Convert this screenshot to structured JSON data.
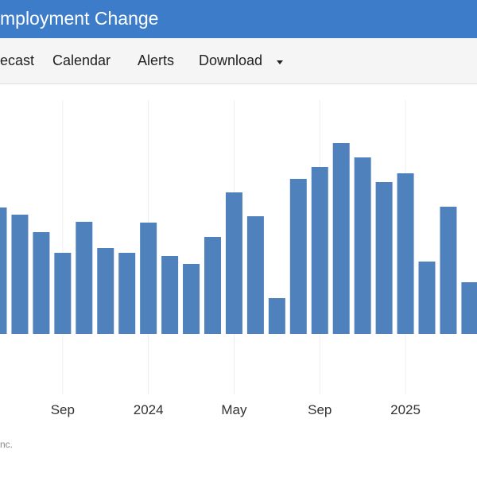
{
  "header": {
    "title": "mployment Change"
  },
  "nav": [
    "ecast",
    "Calendar",
    "Alerts",
    "Download"
  ],
  "footer": {
    "source": "nc."
  },
  "chart_data": {
    "type": "bar",
    "color": "#4f81bd",
    "categories": [
      null,
      null,
      null,
      "Sep",
      null,
      null,
      null,
      "2024",
      null,
      null,
      null,
      "May",
      null,
      null,
      null,
      "Sep",
      null,
      null,
      null,
      "2025",
      null,
      null,
      null
    ],
    "values": [
      159,
      150,
      128,
      102,
      141,
      108,
      102,
      140,
      98,
      88,
      122,
      178,
      148,
      45,
      195,
      210,
      240,
      222,
      191,
      202,
      91,
      160,
      65
    ]
  }
}
